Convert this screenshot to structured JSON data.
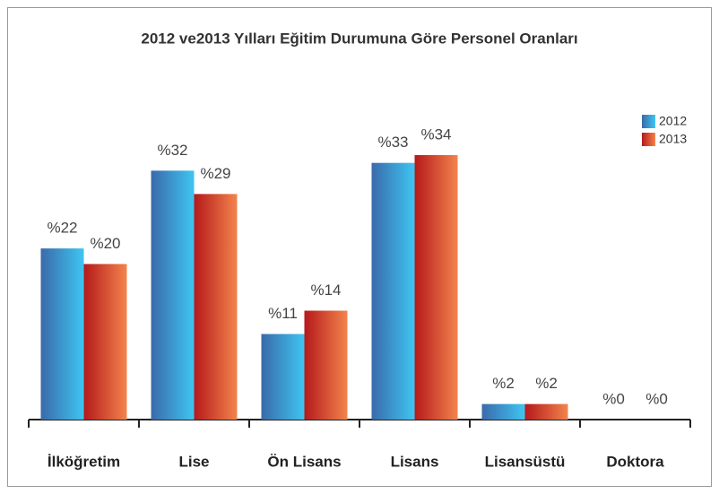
{
  "chart_data": {
    "type": "bar",
    "title": "2012 ve2013 Yılları Eğitim  Durumuna Göre Personel Oranları",
    "categories": [
      "İlköğretim",
      "Lise",
      "Ön Lisans",
      "Lisans",
      "Lisansüstü",
      "Doktora"
    ],
    "series": [
      {
        "name": "2012",
        "color": "#3ec1ef",
        "values": [
          22,
          32,
          11,
          33,
          2,
          0
        ],
        "value_labels": [
          "%22",
          "%32",
          "%11",
          "%33",
          "%2",
          "%0"
        ]
      },
      {
        "name": "2013",
        "color": "#e8663a",
        "values": [
          20,
          29,
          14,
          34,
          2,
          0
        ],
        "value_labels": [
          "%20",
          "%29",
          "%14",
          "%34",
          "%2",
          "%0"
        ]
      }
    ],
    "legend": "upper right"
  }
}
